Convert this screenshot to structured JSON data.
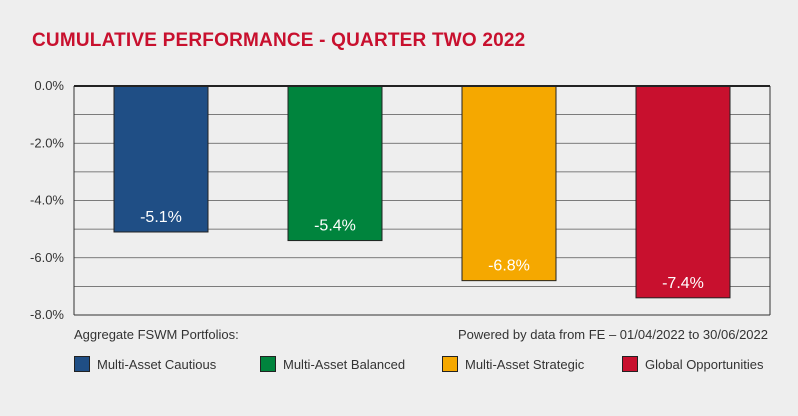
{
  "title": "CUMULATIVE PERFORMANCE - QUARTER TWO 2022",
  "footer": {
    "left": "Aggregate FSWM Portfolios:",
    "right": "Powered by data from FE – 01/04/2022 to 30/06/2022"
  },
  "chart_data": {
    "type": "bar",
    "categories": [
      "Multi-Asset Cautious",
      "Multi-Asset Balanced",
      "Multi-Asset Strategic",
      "Global Opportunities"
    ],
    "values": [
      -5.1,
      -5.4,
      -6.8,
      -7.4
    ],
    "data_labels": [
      "-5.1%",
      "-5.4%",
      "-6.8%",
      "-7.4%"
    ],
    "colors": [
      "#1f4e85",
      "#00843d",
      "#f5a800",
      "#c8102e"
    ],
    "ylim": [
      -8.0,
      0.0
    ],
    "yticks": [
      0.0,
      -2.0,
      -4.0,
      -6.0,
      -8.0
    ],
    "ytick_labels": [
      "0.0%",
      "-2.0%",
      "-4.0%",
      "-6.0%",
      "-8.0%"
    ],
    "grid": true,
    "legend": "bottom"
  }
}
